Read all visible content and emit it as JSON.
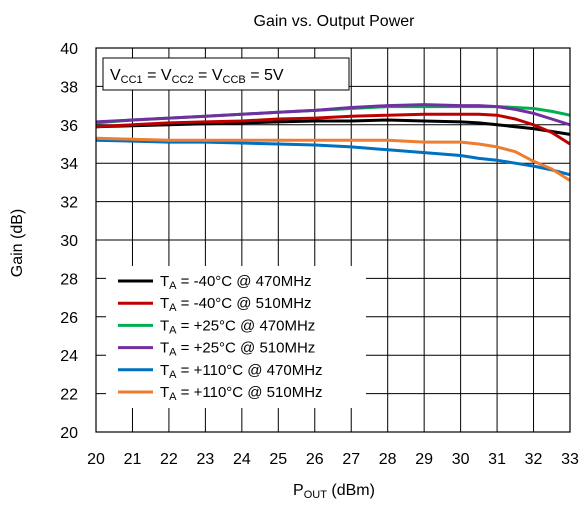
{
  "chart_data": {
    "type": "line",
    "title": "Gain vs. Output Power",
    "xlabel": {
      "main": "P",
      "sub": "OUT",
      "rest": " (dBm)"
    },
    "ylabel": "Gain (dB)",
    "xlim": [
      20,
      33
    ],
    "ylim": [
      20,
      40
    ],
    "xticks": [
      20,
      21,
      22,
      23,
      24,
      25,
      26,
      27,
      28,
      29,
      30,
      31,
      32,
      33
    ],
    "yticks": [
      20,
      22,
      24,
      26,
      28,
      30,
      32,
      34,
      36,
      38,
      40
    ],
    "grid": true,
    "legend_position": "bottom-left",
    "annotation": {
      "parts": [
        {
          "t": "V",
          "sub": false
        },
        {
          "t": "CC1",
          "sub": true
        },
        {
          "t": " = V",
          "sub": false
        },
        {
          "t": "CC2",
          "sub": true
        },
        {
          "t": " = V",
          "sub": false
        },
        {
          "t": "CCB",
          "sub": true
        },
        {
          "t": " = 5V",
          "sub": false
        }
      ]
    },
    "series": [
      {
        "name": "T_A = -40°C @ 470MHz",
        "label_main": "T",
        "label_sub": "A",
        "label_rest": " = -40°C @ 470MHz",
        "color": "#000000",
        "x": [
          20,
          21,
          22,
          23,
          24,
          25,
          26,
          27,
          28,
          29,
          30,
          30.5,
          31,
          31.5,
          32,
          32.5,
          33
        ],
        "y": [
          35.9,
          35.95,
          36.0,
          36.05,
          36.1,
          36.15,
          36.2,
          36.2,
          36.25,
          36.2,
          36.15,
          36.1,
          36.0,
          35.9,
          35.8,
          35.65,
          35.5
        ]
      },
      {
        "name": "T_A = -40°C @ 510MHz",
        "label_main": "T",
        "label_sub": "A",
        "label_rest": " = -40°C @ 510MHz",
        "color": "#c00000",
        "x": [
          20,
          21,
          22,
          23,
          24,
          25,
          26,
          27,
          28,
          29,
          30,
          30.5,
          31,
          31.5,
          32,
          32.5,
          33
        ],
        "y": [
          35.9,
          36.0,
          36.1,
          36.15,
          36.2,
          36.3,
          36.35,
          36.45,
          36.5,
          36.55,
          36.55,
          36.55,
          36.5,
          36.3,
          36.0,
          35.6,
          35.0
        ]
      },
      {
        "name": "T_A = +25°C @ 470MHz",
        "label_main": "T",
        "label_sub": "A",
        "label_rest": " = +25°C @ 470MHz",
        "color": "#00b050",
        "x": [
          20,
          21,
          22,
          23,
          24,
          25,
          26,
          27,
          28,
          29,
          30,
          30.5,
          31,
          31.5,
          32,
          32.5,
          33
        ],
        "y": [
          36.1,
          36.25,
          36.35,
          36.45,
          36.55,
          36.65,
          36.75,
          36.85,
          36.95,
          36.95,
          36.95,
          36.95,
          36.95,
          36.9,
          36.85,
          36.7,
          36.5
        ]
      },
      {
        "name": "T_A = +25°C @ 510MHz",
        "label_main": "T",
        "label_sub": "A",
        "label_rest": " = +25°C @ 510MHz",
        "color": "#7030a0",
        "x": [
          20,
          21,
          22,
          23,
          24,
          25,
          26,
          27,
          28,
          29,
          30,
          30.5,
          31,
          31.5,
          32,
          32.5,
          33
        ],
        "y": [
          36.15,
          36.25,
          36.35,
          36.45,
          36.55,
          36.65,
          36.75,
          36.9,
          37.0,
          37.05,
          37.0,
          37.0,
          36.95,
          36.8,
          36.6,
          36.3,
          36.0
        ]
      },
      {
        "name": "T_A = +110°C @ 470MHz",
        "label_main": "T",
        "label_sub": "A",
        "label_rest": " = +110°C @ 470MHz",
        "color": "#0070c0",
        "x": [
          20,
          21,
          22,
          23,
          24,
          25,
          26,
          27,
          28,
          29,
          30,
          30.5,
          31,
          31.5,
          32,
          32.5,
          33
        ],
        "y": [
          35.2,
          35.15,
          35.1,
          35.1,
          35.05,
          35.0,
          34.95,
          34.85,
          34.7,
          34.55,
          34.4,
          34.25,
          34.15,
          34.0,
          33.85,
          33.65,
          33.4
        ]
      },
      {
        "name": "T_A = +110°C @ 510MHz",
        "label_main": "T",
        "label_sub": "A",
        "label_rest": " = +110°C @ 510MHz",
        "color": "#ed7d31",
        "x": [
          20,
          21,
          22,
          23,
          24,
          25,
          26,
          27,
          28,
          29,
          30,
          30.5,
          31,
          31.5,
          32,
          32.5,
          33
        ],
        "y": [
          35.3,
          35.25,
          35.2,
          35.2,
          35.2,
          35.2,
          35.2,
          35.2,
          35.2,
          35.1,
          35.1,
          35.0,
          34.85,
          34.6,
          34.1,
          33.7,
          33.1
        ]
      }
    ]
  }
}
